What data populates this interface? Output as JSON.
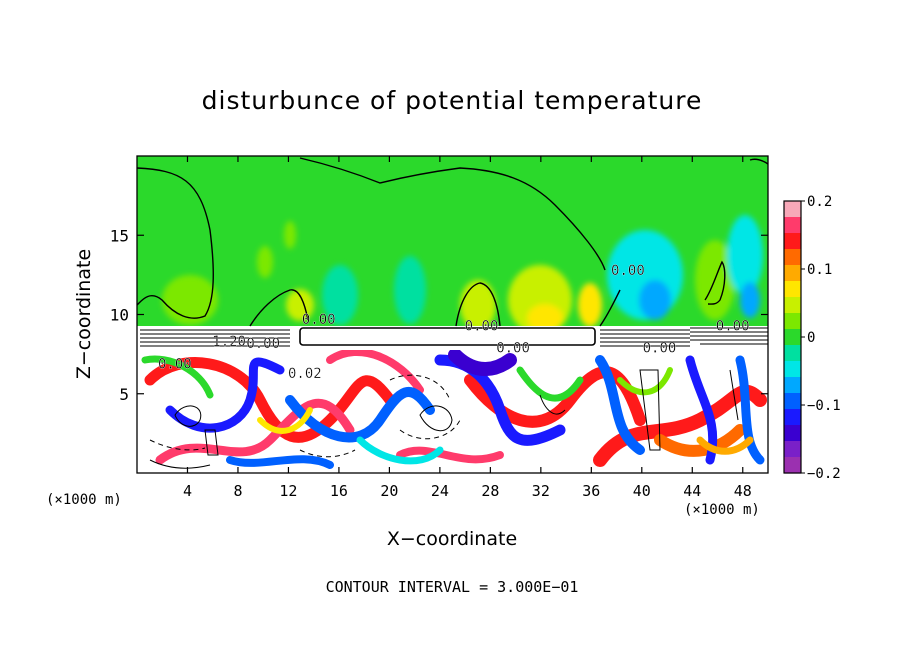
{
  "chart_data": {
    "type": "heatmap",
    "title": "disturbunce of potential temperature",
    "xlabel": "X−coordinate",
    "ylabel": "Z−coordinate",
    "x_unit_left": "(×1000 m)",
    "x_unit_right": "(×1000 m)",
    "xlim": [
      0,
      50
    ],
    "ylim": [
      0,
      20
    ],
    "x_ticks": [
      4,
      8,
      12,
      16,
      20,
      24,
      28,
      32,
      36,
      40,
      44,
      48
    ],
    "y_ticks": [
      5,
      10,
      15
    ],
    "contour_interval_text": "CONTOUR INTERVAL = 3.000E−01",
    "contour_labels": [
      {
        "text": "0.00",
        "x": 38.9,
        "y": 12.5
      },
      {
        "text": "0.00",
        "x": 14.4,
        "y": 9.4
      },
      {
        "text": "0.00",
        "x": 27.3,
        "y": 9.0
      },
      {
        "text": "0.00",
        "x": 29.8,
        "y": 7.6
      },
      {
        "text": "0.00",
        "x": 47.2,
        "y": 9.0
      },
      {
        "text": "0.00",
        "x": 41.4,
        "y": 7.6
      },
      {
        "text": "1.20",
        "x": 7.3,
        "y": 8.0
      },
      {
        "text": "0.00",
        "x": 10.0,
        "y": 7.9
      },
      {
        "text": "0.00",
        "x": 3.0,
        "y": 6.6
      },
      {
        "text": "0.02",
        "x": 13.3,
        "y": 6.0
      }
    ],
    "colorbar": {
      "min": -0.2,
      "max": 0.2,
      "tick_values": [
        0.2,
        0.1,
        0,
        -0.1,
        -0.2
      ],
      "tick_labels": [
        "0.2",
        "0.1",
        "0",
        "−0.1",
        "−0.2"
      ],
      "colors": [
        "#f7a8b8",
        "#ff3b6b",
        "#ff1a1a",
        "#ff6a00",
        "#ffaa00",
        "#ffe600",
        "#c8f000",
        "#7ce800",
        "#2bd92b",
        "#00e0a0",
        "#00e6e6",
        "#00a8ff",
        "#0060ff",
        "#1a1aff",
        "#3a00d0",
        "#7a20c8",
        "#9b30b0"
      ]
    }
  }
}
